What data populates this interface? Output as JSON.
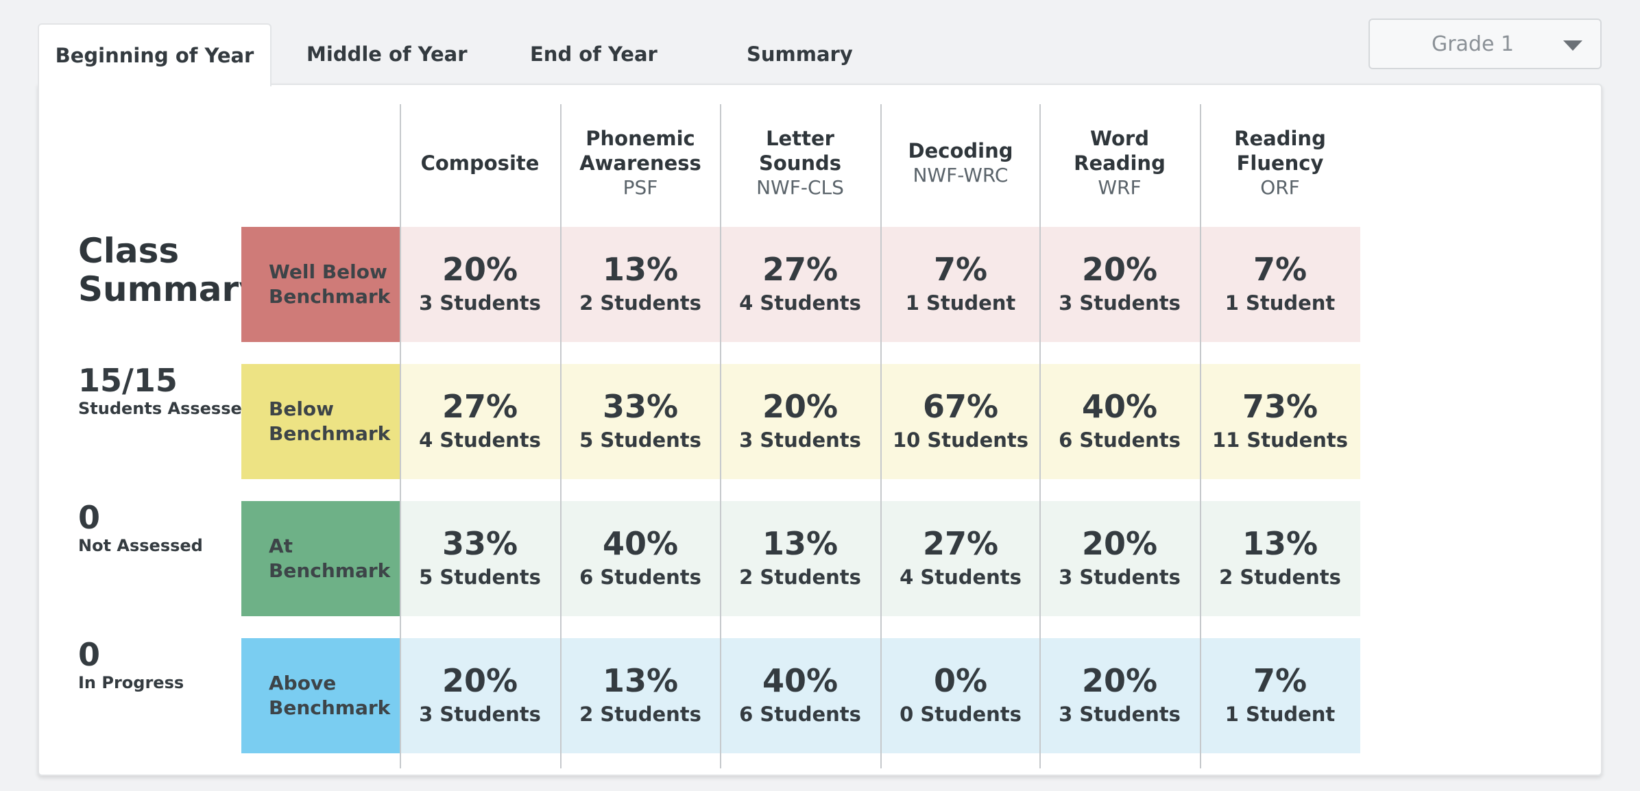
{
  "tabs": [
    {
      "label": "Beginning of Year",
      "active": true
    },
    {
      "label": "Middle of Year",
      "active": false
    },
    {
      "label": "End of Year",
      "active": false
    },
    {
      "label": "Summary",
      "active": false
    }
  ],
  "grade_select": {
    "value": "Grade 1"
  },
  "summary": {
    "title_line1": "Class",
    "title_line2": "Summary",
    "assessed": {
      "value": "15/15",
      "label": "Students Assessed"
    },
    "not_assessed": {
      "value": "0",
      "label": "Not Assessed"
    },
    "in_progress": {
      "value": "0",
      "label": "In Progress"
    }
  },
  "columns": [
    {
      "title": "Composite",
      "subtitle": ""
    },
    {
      "title": "Phonemic\nAwareness",
      "subtitle": "PSF"
    },
    {
      "title": "Letter\nSounds",
      "subtitle": "NWF-CLS"
    },
    {
      "title": "Decoding",
      "subtitle": "NWF-WRC"
    },
    {
      "title": "Word\nReading",
      "subtitle": "WRF"
    },
    {
      "title": "Reading\nFluency",
      "subtitle": "ORF"
    }
  ],
  "rows": [
    {
      "label_line1": "Well Below",
      "label_line2": "Benchmark",
      "color": "#cf7b78",
      "band_color": "#f7e9e9",
      "cells": [
        {
          "pct": "20%",
          "count": "3 Students"
        },
        {
          "pct": "13%",
          "count": "2 Students"
        },
        {
          "pct": "27%",
          "count": "4 Students"
        },
        {
          "pct": "7%",
          "count": "1 Student"
        },
        {
          "pct": "20%",
          "count": "3 Students"
        },
        {
          "pct": "7%",
          "count": "1 Student"
        }
      ]
    },
    {
      "label_line1": "Below",
      "label_line2": "Benchmark",
      "color": "#ede384",
      "band_color": "#fbf8df",
      "cells": [
        {
          "pct": "27%",
          "count": "4 Students"
        },
        {
          "pct": "33%",
          "count": "5 Students"
        },
        {
          "pct": "20%",
          "count": "3 Students"
        },
        {
          "pct": "67%",
          "count": "10 Students"
        },
        {
          "pct": "40%",
          "count": "6 Students"
        },
        {
          "pct": "73%",
          "count": "11 Students"
        }
      ]
    },
    {
      "label_line1": "At",
      "label_line2": "Benchmark",
      "color": "#6eb187",
      "band_color": "#eef5f1",
      "cells": [
        {
          "pct": "33%",
          "count": "5 Students"
        },
        {
          "pct": "40%",
          "count": "6 Students"
        },
        {
          "pct": "13%",
          "count": "2 Students"
        },
        {
          "pct": "27%",
          "count": "4 Students"
        },
        {
          "pct": "20%",
          "count": "3 Students"
        },
        {
          "pct": "13%",
          "count": "2 Students"
        }
      ]
    },
    {
      "label_line1": "Above",
      "label_line2": "Benchmark",
      "color": "#7acdf1",
      "band_color": "#def0f8",
      "cells": [
        {
          "pct": "20%",
          "count": "3 Students"
        },
        {
          "pct": "13%",
          "count": "2 Students"
        },
        {
          "pct": "40%",
          "count": "6 Students"
        },
        {
          "pct": "0%",
          "count": "0 Students"
        },
        {
          "pct": "20%",
          "count": "3 Students"
        },
        {
          "pct": "7%",
          "count": "1 Student"
        }
      ]
    }
  ]
}
